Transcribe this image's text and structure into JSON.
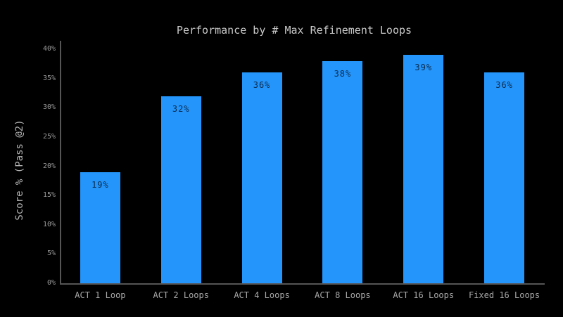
{
  "chart_data": {
    "type": "bar",
    "title": "Performance by # Max Refinement Loops",
    "xlabel": "",
    "ylabel": "Score % (Pass @2)",
    "categories": [
      "ACT 1 Loop",
      "ACT 2 Loops",
      "ACT 4 Loops",
      "ACT 8 Loops",
      "ACT 16 Loops",
      "Fixed 16 Loops"
    ],
    "values": [
      19,
      32,
      36,
      38,
      39,
      36
    ],
    "value_labels": [
      "19%",
      "32%",
      "36%",
      "38%",
      "39%",
      "36%"
    ],
    "ylim": [
      0,
      40
    ],
    "yticks": [
      0,
      5,
      10,
      15,
      20,
      25,
      30,
      35,
      40
    ],
    "ytick_labels": [
      "0%",
      "5%",
      "10%",
      "15%",
      "20%",
      "25%",
      "30%",
      "35%",
      "40%"
    ],
    "grid": false,
    "legend": null
  },
  "colors": {
    "background": "#000000",
    "bar": "#2395fb",
    "bar_value_label": "#0d2b4e",
    "title": "#c9c9c9",
    "axis_line": "#555555",
    "y_tick_label": "#9b9b9b",
    "x_category_label": "#a8a8a8",
    "y_axis_label": "#b5b5b5"
  }
}
